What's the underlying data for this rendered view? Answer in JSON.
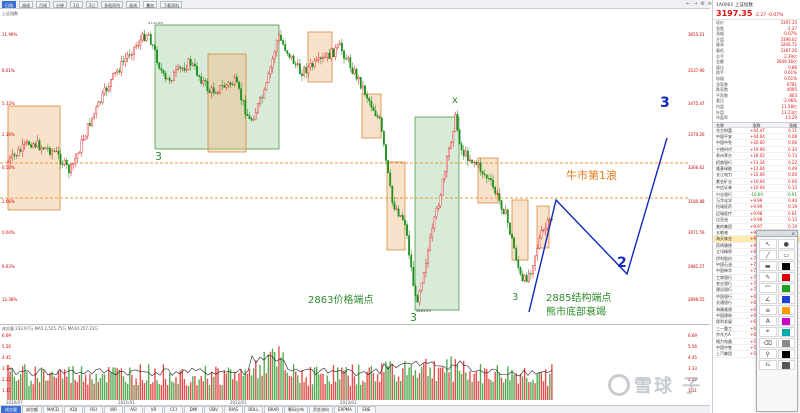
{
  "toolbar": {
    "items": [
      "日线",
      "周线",
      "月线",
      "分钟",
      "1日",
      "3日",
      "多股同列",
      "画线",
      "叠加",
      "下载资料"
    ]
  },
  "subtitle": "上证指数",
  "top_icons": [
    "←",
    "→",
    "⚙",
    "≡"
  ],
  "main_chart": {
    "left_axis": [
      "11.99%",
      "8.61%",
      "5.32%",
      "2.16%",
      "0.58%",
      "2.66%",
      "0.04%",
      "9.63%",
      "12.38%"
    ],
    "right_axis": [
      "3655.21",
      "3537.90",
      "3475.47",
      "3370.26",
      "3266.62",
      "3180.88",
      "3071.59",
      "2981.27",
      "2899.55"
    ],
    "price_labels": {
      "high": "3731.69",
      "low": "2863.65"
    }
  },
  "annotations": {
    "wave3_a": "3",
    "wave3_b": "3",
    "wave3_c": "3",
    "wave_x": "x",
    "price_end": "2863价格端点",
    "struct_end": "2885结构端点",
    "bear_decay": "熊市底部衰竭",
    "bull_wave1": "牛市第1浪",
    "proj_2": "2",
    "proj_3": "3"
  },
  "volume": {
    "title": "成交量 232.97万   MA5:2,525.75万  MA10:257.23万",
    "left_axis": [
      "6.69",
      "5.56",
      "4.45",
      "3.33",
      "2.22",
      "1.11"
    ],
    "right_axis": [
      "6.69",
      "5.56",
      "4.45",
      "3.33",
      "2.22",
      "1.11"
    ]
  },
  "date_axis": [
    "2020/07",
    "2021/01",
    "2022/01",
    "2023/01"
  ],
  "bottom_tabs": [
    "成交量",
    "成交额",
    "MACD",
    "KDJ",
    "RSI",
    "WR",
    "ASI",
    "VR",
    "CCI",
    "DMI",
    "OBV",
    "BIAS",
    "BOLL",
    "BRAR",
    "筹码分布",
    "资金流向",
    "EXPMA",
    "ENE"
  ],
  "right_panel": {
    "code": "1A0001  上证指数",
    "price": "3197.35",
    "change": "-2.27  -0.07%",
    "stats": [
      {
        "k": "现价",
        "v": "3197.35"
      },
      {
        "k": "涨跌",
        "v": "-2.27"
      },
      {
        "k": "涨幅",
        "v": "-0.07%"
      },
      {
        "k": "开盘",
        "v": "3196.02"
      },
      {
        "k": "最高",
        "v": "3206.72"
      },
      {
        "k": "最低",
        "v": "3187.26"
      },
      {
        "k": "总手",
        "v": "2.39亿"
      },
      {
        "k": "金额",
        "v": "2649.36亿"
      },
      {
        "k": "量比",
        "v": "0.86"
      },
      {
        "k": "换手",
        "v": "0.61%"
      },
      {
        "k": "振幅",
        "v": "0.61%"
      },
      {
        "k": "涨家数",
        "v": "6781"
      },
      {
        "k": "跌家数",
        "v": "4095"
      },
      {
        "k": "平家数",
        "v": "803"
      },
      {
        "k": "委比",
        "v": "-2.06%"
      },
      {
        "k": "内盘",
        "v": "11.58亿"
      },
      {
        "k": "外盘",
        "v": "11.23亿"
      },
      {
        "k": "市盈率",
        "v": "13.29"
      }
    ],
    "list_head": [
      "名称",
      "涨跌",
      "涨幅"
    ],
    "list": [
      {
        "n": "东方财富",
        "c": "+44.47",
        "p": "0.11"
      },
      {
        "n": "中国平安",
        "c": "+44.04",
        "p": "0.08"
      },
      {
        "n": "中国中免",
        "c": "+20.00",
        "p": "0.06"
      },
      {
        "n": "宁德时代",
        "c": "+19.99",
        "p": "0.34"
      },
      {
        "n": "贵州茅台",
        "c": "+18.02",
        "p": "0.73"
      },
      {
        "n": "招商银行",
        "c": "+13.34",
        "p": "0.22"
      },
      {
        "n": "隆基绿能",
        "c": "+12.04",
        "p": "0.49"
      },
      {
        "n": "长江电力",
        "c": "+10.06",
        "p": "0.00"
      },
      {
        "n": "紫金矿业",
        "c": "+10.04",
        "p": "0.00"
      },
      {
        "n": "中信证券",
        "c": "+10.04",
        "p": "0.12"
      },
      {
        "n": "兴业银行",
        "c": "-10.00",
        "p": "-0.91",
        "neg": true
      },
      {
        "n": "万华化学",
        "c": "+9.99",
        "p": "0.44"
      },
      {
        "n": "恒瑞医药",
        "c": "+9.99",
        "p": "0.19"
      },
      {
        "n": "迈瑞医疗",
        "c": "+9.98",
        "p": "0.61"
      },
      {
        "n": "比亚迪",
        "c": "+9.98",
        "p": "0.12"
      },
      {
        "n": "美的集团",
        "c": "+9.97",
        "p": "0.19"
      },
      {
        "n": "五粮液",
        "c": "+9.97",
        "p": "0.31"
      },
      {
        "n": "海天味业",
        "c": "+9.95",
        "p": "0.11",
        "hl": true
      },
      {
        "n": "药明康德",
        "c": "+9.91",
        "p": "0.09"
      },
      {
        "n": "立讯精密",
        "c": "+8.71",
        "p": "0.34"
      },
      {
        "n": "伊利股份",
        "c": "+7.99",
        "p": "0.12"
      },
      {
        "n": "中国石油",
        "c": "+7.58",
        "p": "0.29"
      },
      {
        "n": "中国神华",
        "c": "+7.45",
        "p": "0.63"
      },
      {
        "n": "工商银行",
        "c": "+7.41",
        "p": "0.15"
      },
      {
        "n": "农业银行",
        "c": "+7.36",
        "p": "0.18"
      },
      {
        "n": "建设银行",
        "c": "+7.02",
        "p": "0.14"
      },
      {
        "n": "中国银行",
        "c": "+6.98",
        "p": "0.33"
      },
      {
        "n": "交通银行",
        "c": "+6.87",
        "p": "0.12"
      },
      {
        "n": "海康威视",
        "c": "+6.52",
        "p": "0.45"
      },
      {
        "n": "中国建筑",
        "c": "+6.44",
        "p": "0.29"
      },
      {
        "n": "保利发展",
        "c": "+6.30",
        "p": "0.29"
      },
      {
        "n": "三一重工",
        "c": "+6.13",
        "p": "0.32"
      },
      {
        "n": "京东方A",
        "c": "+6.02",
        "p": "0.26"
      },
      {
        "n": "格力电器",
        "c": "+5.99",
        "p": "0.29"
      },
      {
        "n": "中国中铁",
        "c": "+5.81",
        "p": "0.26"
      },
      {
        "n": "上汽集团",
        "c": "+5.78",
        "p": "0.26"
      }
    ]
  },
  "palette": {
    "title": "×",
    "tools": [
      "↖",
      "●",
      "╱",
      "▭",
      "▬",
      "■",
      "✎",
      "■",
      "⌒",
      "■",
      "∠",
      "■",
      "≡",
      "■",
      "A",
      "■",
      "⌖",
      "■",
      "⌫",
      "■",
      "⚲",
      "■",
      "⎌",
      "■"
    ],
    "colors": [
      "#000000",
      "#d80000",
      "#1aa31a",
      "#1f3fd8",
      "#ff9900",
      "#cc00cc",
      "#00aaaa",
      "#888888",
      "#000000",
      "#555555"
    ]
  },
  "watermark": {
    "text": "雪球 子"
  },
  "colors": {
    "up": "#d11",
    "down": "#1a8f1a",
    "orange_line": "#e69a3a",
    "projection": "#1228b8",
    "green_box": "#8fc58f",
    "orange_box": "#f0b27a"
  }
}
